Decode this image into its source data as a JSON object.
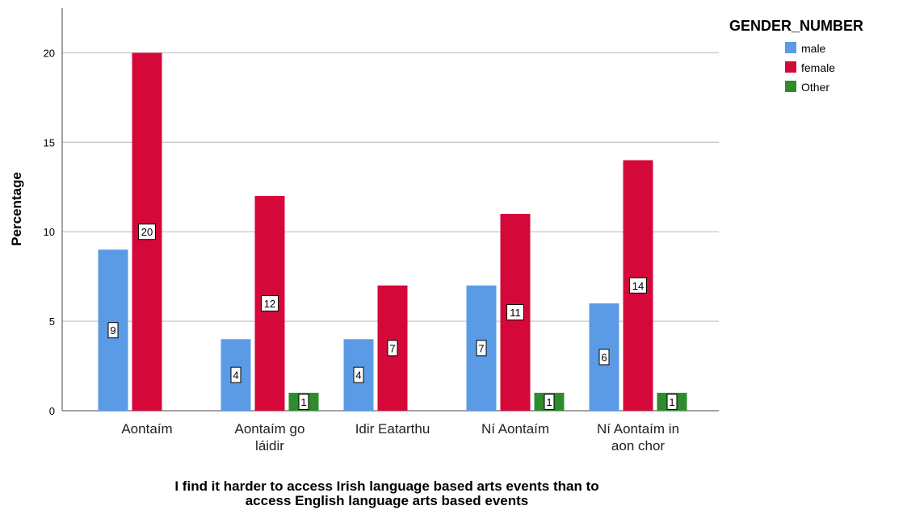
{
  "chart_data": {
    "type": "bar",
    "categories": [
      [
        "Aontaím"
      ],
      [
        "Aontaím go",
        "láidir"
      ],
      [
        "Idir Eatarthu"
      ],
      [
        "Ní Aontaím"
      ],
      [
        "Ní Aontaím in",
        "aon chor"
      ]
    ],
    "series": [
      {
        "name": "male",
        "color": "#5b9be6",
        "values": [
          9,
          4,
          4,
          7,
          6
        ]
      },
      {
        "name": "female",
        "color": "#d4093a",
        "values": [
          20,
          12,
          7,
          11,
          14
        ]
      },
      {
        "name": "Other",
        "color": "#2e8b2e",
        "values": [
          null,
          1,
          null,
          1,
          1
        ]
      }
    ],
    "ylabel": "Percentage",
    "xlabel": [
      "I find it harder to access Irish language based arts events than to",
      "access English language arts based events"
    ],
    "ylim": [
      0,
      22.5
    ],
    "yticks": [
      0,
      5,
      10,
      15,
      20
    ],
    "grid": true,
    "legend_title": "GENDER_NUMBER",
    "legend_position": "top-right"
  }
}
